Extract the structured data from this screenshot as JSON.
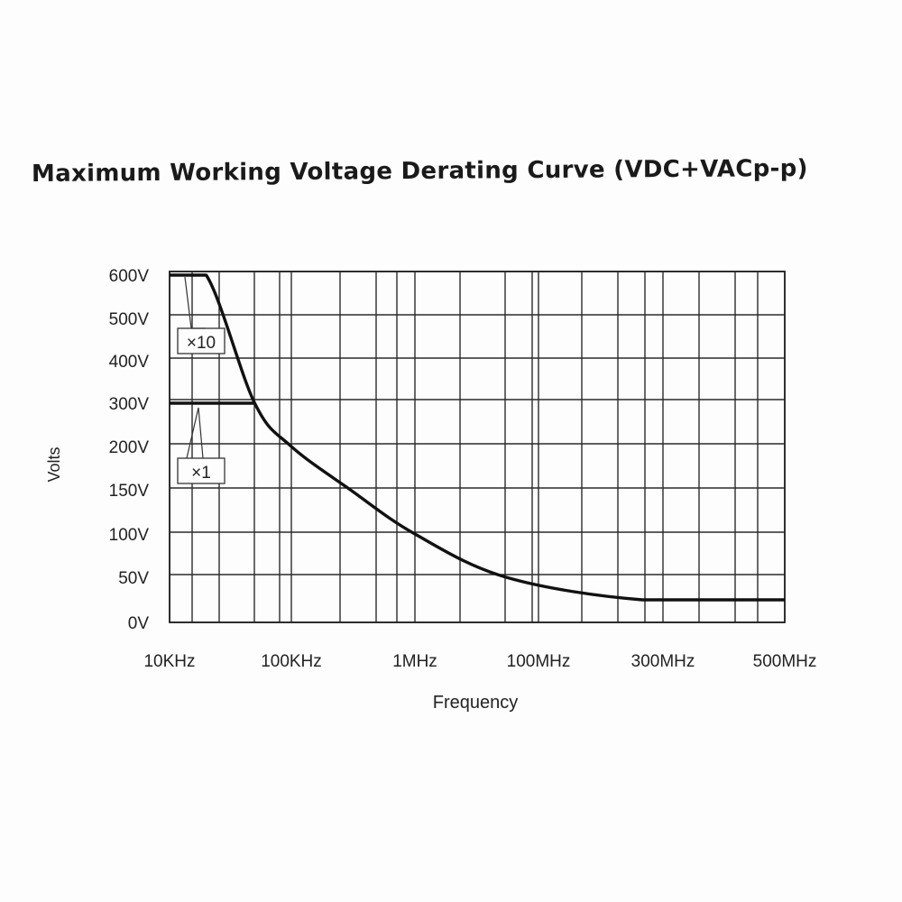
{
  "chart_data": {
    "type": "line",
    "title": "Maximum Working Voltage Derating Curve (VDC+VACp-p)",
    "xlabel": "Frequency",
    "ylabel": "Volts",
    "x_tick_labels": [
      "10KHz",
      "100KHz",
      "1MHz",
      "100MHz",
      "300MHz",
      "500MHz"
    ],
    "y_tick_labels": [
      "0V",
      "50V",
      "100V",
      "150V",
      "200V",
      "300V",
      "400V",
      "500V",
      "600V"
    ],
    "x_scale": "categorical-log (ticks spaced evenly)",
    "y_scale": "non-linear (ticks spaced evenly)",
    "grid": true,
    "series": [
      {
        "name": "×10",
        "description": "Maximum working voltage with ×10 setting",
        "points": [
          {
            "x": "10KHz",
            "y": 600
          },
          {
            "x": "20KHz",
            "y": 600
          },
          {
            "x": "50KHz",
            "y": 300
          },
          {
            "x": "100KHz",
            "y": 200
          },
          {
            "x": "300KHz",
            "y": 150
          },
          {
            "x": "1MHz",
            "y": 100
          },
          {
            "x": "30MHz",
            "y": 50
          },
          {
            "x": "250MHz",
            "y": 25
          },
          {
            "x": "500MHz",
            "y": 25
          }
        ]
      },
      {
        "name": "×1",
        "description": "Maximum working voltage with ×1 setting",
        "points": [
          {
            "x": "10KHz",
            "y": 300
          },
          {
            "x": "50KHz",
            "y": 300
          }
        ]
      }
    ],
    "annotations": [
      {
        "text": "×10",
        "target_series": "×10"
      },
      {
        "text": "×1",
        "target_series": "×1"
      }
    ]
  }
}
